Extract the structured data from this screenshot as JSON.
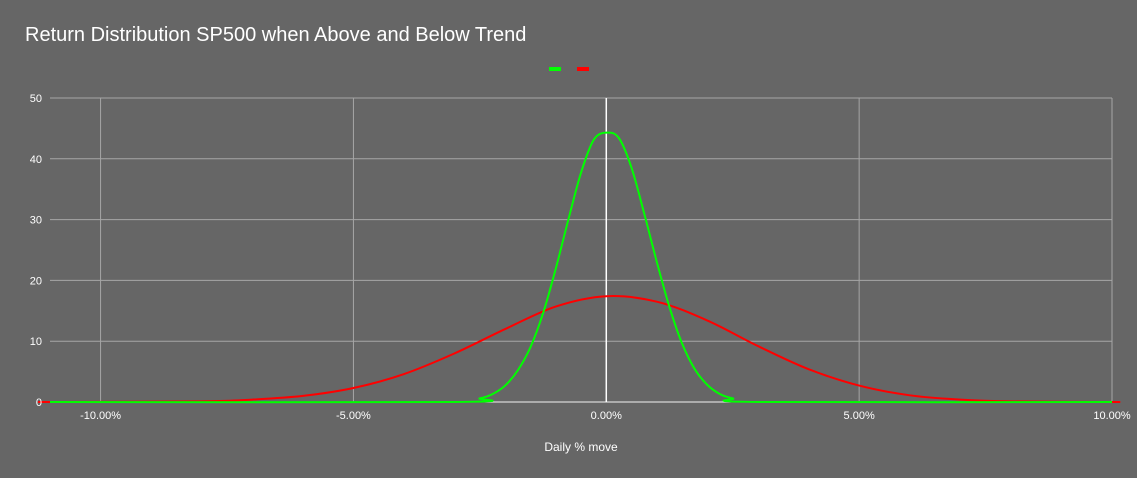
{
  "chart_data": {
    "type": "line",
    "title": "Return Distribution SP500 when Above and Below Trend",
    "xlabel": "Daily % move",
    "ylabel": "",
    "xlim": [
      -0.11,
      0.1
    ],
    "ylim": [
      0,
      50
    ],
    "x_ticks": [
      -0.1,
      -0.05,
      0.0,
      0.05,
      0.1
    ],
    "x_tick_labels": [
      "-10.00%",
      "-5.00%",
      "0.00%",
      "5.00%",
      "10.00%"
    ],
    "y_ticks": [
      0,
      10,
      20,
      30,
      40,
      50
    ],
    "y_tick_labels": [
      "0",
      "10",
      "20",
      "30",
      "40",
      "50"
    ],
    "grid": true,
    "legend_position": "top",
    "series": [
      {
        "color": "#00ff00",
        "x": [
          -0.03,
          -0.025,
          -0.0225,
          -0.02,
          -0.0175,
          -0.015,
          -0.0125,
          -0.01,
          -0.0075,
          -0.005,
          -0.0025,
          0.0,
          0.0025,
          0.005,
          0.0075,
          0.01,
          0.0125,
          0.015,
          0.0175,
          0.02,
          0.0225,
          0.025,
          0.03
        ],
        "y": [
          0,
          0.6,
          1.3,
          2.7,
          5.2,
          9.0,
          14.6,
          21.9,
          30.0,
          37.7,
          43.1,
          44.3,
          43.4,
          38.5,
          31.0,
          23.0,
          15.6,
          9.6,
          5.4,
          2.8,
          1.3,
          0.6,
          0
        ]
      },
      {
        "color": "#ff0000",
        "x": [
          -0.11,
          -0.08,
          -0.07,
          -0.06,
          -0.05,
          -0.04,
          -0.03,
          -0.02,
          -0.01,
          0.0,
          0.01,
          0.02,
          0.03,
          0.04,
          0.05,
          0.06,
          0.07,
          0.08,
          0.1
        ],
        "y": [
          0,
          0.1,
          0.4,
          1.0,
          2.3,
          4.6,
          8.0,
          12.0,
          15.7,
          17.4,
          16.5,
          13.4,
          9.2,
          5.4,
          2.7,
          1.1,
          0.4,
          0.1,
          0
        ]
      }
    ]
  }
}
